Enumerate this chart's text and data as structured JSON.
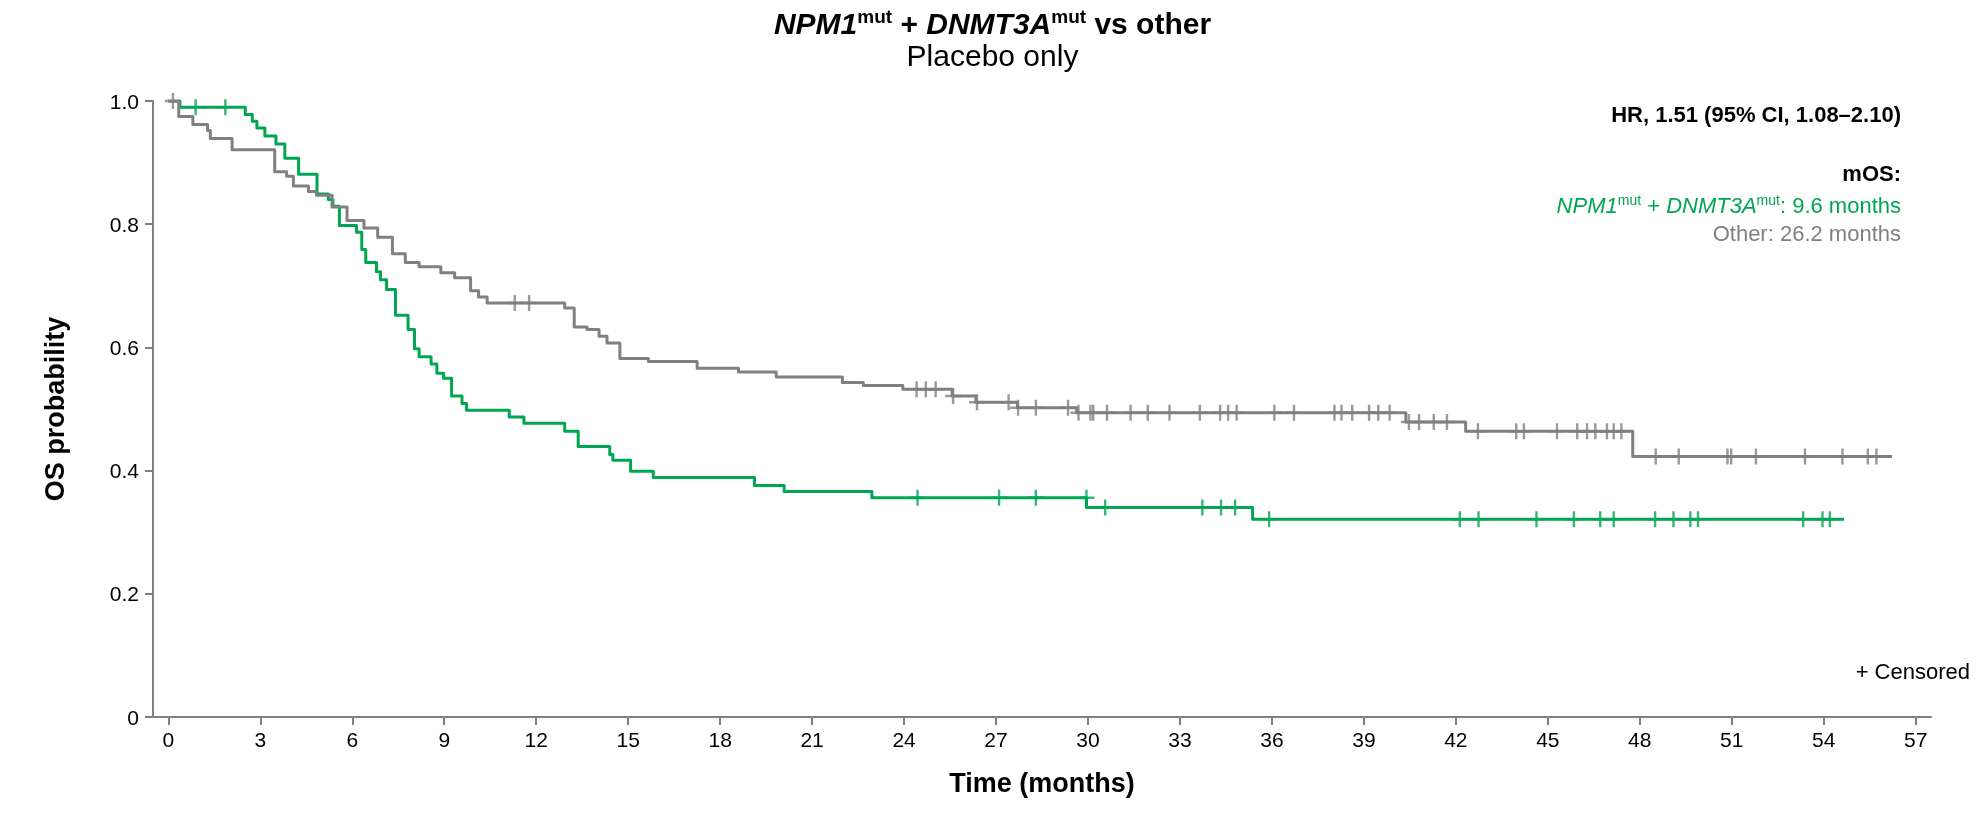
{
  "chart_data": {
    "type": "step",
    "title": "NPM1$^{mut}$ + DNMT3A$^{mut}$ vs other",
    "subtitle": "Placebo only",
    "xlabel": "Time (months)",
    "ylabel": "OS probability",
    "annotations": [
      "HR, 1.51 (95% CI, 1.08–2.10)",
      "mOS:",
      "NPM1$^{mut}$ + DNMT3A$^{mut}$: 9.6 months",
      "Other: 26.2 months",
      "+ Censored"
    ],
    "xlim": [
      -0.5,
      57.5
    ],
    "xticks": [
      0,
      3,
      6,
      9,
      12,
      15,
      18,
      21,
      24,
      27,
      30,
      33,
      36,
      39,
      42,
      45,
      48,
      51,
      54,
      57
    ],
    "ylim": [
      0,
      1
    ],
    "yticks": [
      0,
      0.2,
      0.4,
      0.6,
      0.8,
      {
        "value": 1,
        "label": "1.0"
      }
    ],
    "grid": false,
    "marker": "none",
    "line_style": "solid",
    "series": [
      {
        "color": "#00a651",
        "x": [
          0,
          0.38,
          2.51,
          2.74,
          2.89,
          3.15,
          3.51,
          3.8,
          4.25,
          4.85,
          5.22,
          5.37,
          5.58,
          6.14,
          6.31,
          6.44,
          6.79,
          6.92,
          7.12,
          7.41,
          7.82,
          8.03,
          8.18,
          8.57,
          8.76,
          8.98,
          9.24,
          9.58,
          9.73,
          11.12,
          11.6,
          12.93,
          13.37,
          14.4,
          14.5,
          15.08,
          15.82,
          19.12,
          20.09,
          22.95,
          29.95,
          35.37,
          54.66
        ],
        "values": [
          1,
          0.99,
          0.978,
          0.967,
          0.956,
          0.943,
          0.93,
          0.907,
          0.881,
          0.849,
          0.84,
          0.829,
          0.798,
          0.787,
          0.759,
          0.738,
          0.723,
          0.71,
          0.694,
          0.652,
          0.629,
          0.598,
          0.585,
          0.573,
          0.558,
          0.55,
          0.521,
          0.509,
          0.498,
          0.487,
          0.477,
          0.464,
          0.439,
          0.426,
          0.417,
          0.399,
          0.389,
          0.376,
          0.366,
          0.356,
          0.34,
          0.321,
          0.321
        ]
      },
      {
        "color": "#808080",
        "x": [
          0,
          0.34,
          0.8,
          1.28,
          1.37,
          2.08,
          3.15,
          3.47,
          3.86,
          4.08,
          4.57,
          4.83,
          5.34,
          5.83,
          6.38,
          6.83,
          7.31,
          7.73,
          8.18,
          8.89,
          9.34,
          9.86,
          10.12,
          10.4,
          12.93,
          13.24,
          13.66,
          14.05,
          14.31,
          14.73,
          15.66,
          17.25,
          18.6,
          19.83,
          21.99,
          22.67,
          23.96,
          25.57,
          26.34,
          27.7,
          29.63,
          40.37,
          42.32,
          47.77,
          56.23
        ],
        "values": [
          1,
          0.975,
          0.962,
          0.952,
          0.939,
          0.921,
          0.921,
          0.885,
          0.878,
          0.862,
          0.853,
          0.847,
          0.828,
          0.806,
          0.794,
          0.779,
          0.752,
          0.738,
          0.731,
          0.721,
          0.713,
          0.692,
          0.682,
          0.672,
          0.664,
          0.633,
          0.629,
          0.618,
          0.607,
          0.582,
          0.577,
          0.566,
          0.56,
          0.552,
          0.543,
          0.538,
          0.532,
          0.521,
          0.511,
          0.502,
          0.494,
          0.479,
          0.464,
          0.423,
          0.423
        ]
      },
      {
        "type": "scatter",
        "marker": "cross",
        "color": "#00a651",
        "x": [
          0.89,
          1.86,
          24.44,
          27.1,
          28.3,
          29.95,
          30.56,
          33.73,
          34.34,
          34.8,
          35.91,
          42.13,
          42.74,
          44.63,
          45.85,
          46.71,
          47.15,
          48.5,
          49.1,
          49.65,
          49.9,
          53.33,
          53.96,
          54.2
        ],
        "values": [
          0.99,
          0.99,
          0.356,
          0.356,
          0.356,
          0.356,
          0.34,
          0.34,
          0.34,
          0.34,
          0.321,
          0.321,
          0.321,
          0.321,
          0.321,
          0.321,
          0.321,
          0.321,
          0.321,
          0.321,
          0.321,
          0.321,
          0.321,
          0.321
        ]
      },
      {
        "type": "scatter",
        "marker": "cross",
        "color": "#808080",
        "x": [
          0.15,
          11.3,
          11.77,
          24.41,
          24.71,
          25.03,
          25.6,
          26.38,
          27.41,
          27.72,
          28.3,
          29.35,
          29.69,
          30.08,
          30.17,
          30.62,
          31.39,
          31.95,
          32.66,
          33.65,
          34.31,
          34.57,
          34.85,
          36.08,
          36.72,
          38.04,
          38.27,
          38.62,
          39.17,
          39.47,
          39.84,
          40.47,
          40.8,
          41.28,
          41.71,
          42.72,
          43.97,
          44.22,
          45.3,
          45.96,
          46.28,
          46.55,
          46.93,
          47.15,
          47.4,
          48.52,
          49.27,
          50.86,
          50.98,
          51.79,
          53.39,
          54.61,
          55.44,
          55.72
        ],
        "values": [
          1,
          0.672,
          0.672,
          0.532,
          0.532,
          0.532,
          0.521,
          0.511,
          0.511,
          0.502,
          0.502,
          0.502,
          0.494,
          0.494,
          0.494,
          0.494,
          0.494,
          0.494,
          0.494,
          0.494,
          0.494,
          0.494,
          0.494,
          0.494,
          0.494,
          0.494,
          0.494,
          0.494,
          0.494,
          0.494,
          0.494,
          0.479,
          0.479,
          0.479,
          0.479,
          0.464,
          0.464,
          0.464,
          0.464,
          0.464,
          0.464,
          0.464,
          0.464,
          0.464,
          0.464,
          0.423,
          0.423,
          0.423,
          0.423,
          0.423,
          0.423,
          0.423,
          0.423,
          0.423
        ]
      }
    ]
  }
}
